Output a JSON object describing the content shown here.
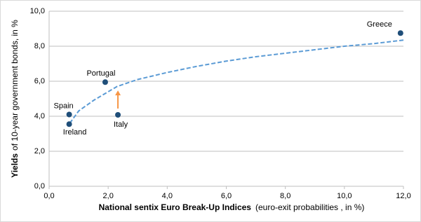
{
  "chart_data": {
    "type": "scatter",
    "x_label": [
      "National sentix Euro Break-Up Indices",
      "(euro-exit probabilities , in %)"
    ],
    "y_label": [
      "Yields",
      "of 10-year government bonds, in %"
    ],
    "series": [
      {
        "color": "#1f4e79",
        "labels": [
          "Greece",
          "Portugal",
          "Spain",
          "Ireland",
          "Italy"
        ],
        "x": [
          11.9,
          1.9,
          0.68,
          0.68,
          2.33
        ],
        "values": [
          8.75,
          5.95,
          4.1,
          3.55,
          4.08
        ]
      }
    ],
    "trendline": {
      "color": "#5b9bd5",
      "x": [
        0.7,
        1,
        1.5,
        2,
        2.3,
        3,
        4,
        5,
        6,
        7,
        8,
        9,
        10,
        11,
        12
      ],
      "values": [
        3.6,
        4.3,
        4.9,
        5.4,
        5.7,
        6.1,
        6.5,
        6.85,
        7.15,
        7.4,
        7.6,
        7.8,
        8.0,
        8.15,
        8.35
      ]
    },
    "arrow_color": "#f79646",
    "xlim": [
      0,
      12
    ],
    "ylim": [
      0,
      10
    ],
    "xticks": [
      {
        "value": 0,
        "label": "0,0"
      },
      {
        "value": 2,
        "label": "2,0"
      },
      {
        "value": 4,
        "label": "4,0"
      },
      {
        "value": 6,
        "label": "6,0"
      },
      {
        "value": 8,
        "label": "8,0"
      },
      {
        "value": 10,
        "label": "10,0"
      },
      {
        "value": 12,
        "label": "12,0"
      }
    ],
    "yticks": [
      {
        "value": 0,
        "label": "0,0"
      },
      {
        "value": 2,
        "label": "2,0"
      },
      {
        "value": 4,
        "label": "4,0"
      },
      {
        "value": 6,
        "label": "6,0"
      },
      {
        "value": 8,
        "label": "8,0"
      },
      {
        "value": 10,
        "label": "10,0"
      }
    ],
    "grid": true
  }
}
